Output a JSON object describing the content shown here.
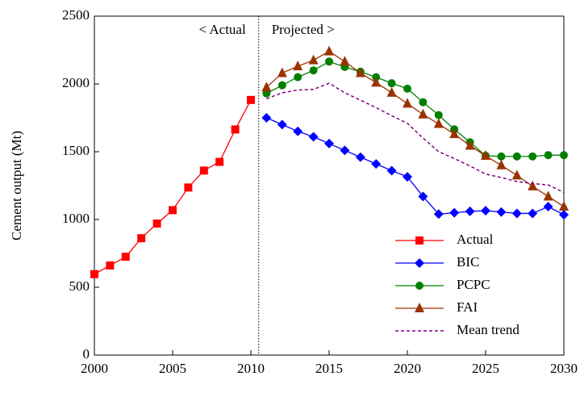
{
  "chart_data": {
    "type": "line",
    "y_label": "Cement output (Mt)",
    "annotations": [
      "< Actual",
      "Projected >"
    ],
    "divider": 2010.5,
    "x": [
      2000,
      2001,
      2002,
      2003,
      2004,
      2005,
      2006,
      2007,
      2008,
      2009,
      2010,
      2011,
      2012,
      2013,
      2014,
      2015,
      2016,
      2017,
      2018,
      2019,
      2020,
      2021,
      2022,
      2023,
      2024,
      2025,
      2026,
      2027,
      2028,
      2029,
      2030
    ],
    "series": [
      {
        "name": "Actual",
        "color": "#ff0000",
        "marker": "square",
        "dashed": false,
        "values": [
          597,
          661,
          725,
          862,
          970,
          1069,
          1236,
          1361,
          1425,
          1664,
          1882,
          null,
          null,
          null,
          null,
          null,
          null,
          null,
          null,
          null,
          null,
          null,
          null,
          null,
          null,
          null,
          null,
          null,
          null,
          null,
          null
        ]
      },
      {
        "name": "BIC",
        "color": "#0000ff",
        "marker": "diamond",
        "dashed": false,
        "values": [
          null,
          null,
          null,
          null,
          null,
          null,
          null,
          null,
          null,
          null,
          null,
          1750,
          1700,
          1650,
          1610,
          1560,
          1510,
          1460,
          1410,
          1360,
          1315,
          1170,
          1040,
          1050,
          1060,
          1065,
          1055,
          1045,
          1045,
          1095,
          1035
        ]
      },
      {
        "name": "PCPC",
        "color": "#008000",
        "marker": "circle",
        "dashed": false,
        "values": [
          null,
          null,
          null,
          null,
          null,
          null,
          null,
          null,
          null,
          null,
          null,
          1930,
          1990,
          2050,
          2100,
          2165,
          2125,
          2090,
          2050,
          2005,
          1965,
          1865,
          1770,
          1665,
          1570,
          1470,
          1465,
          1465,
          1465,
          1475,
          1475
        ]
      },
      {
        "name": "FAI",
        "color": "#993300",
        "marker": "triangle",
        "dashed": false,
        "values": [
          null,
          null,
          null,
          null,
          null,
          null,
          null,
          null,
          null,
          null,
          null,
          1975,
          2080,
          2130,
          2175,
          2240,
          2165,
          2080,
          2010,
          1935,
          1855,
          1775,
          1705,
          1630,
          1545,
          1470,
          1400,
          1325,
          1245,
          1170,
          1095
        ]
      },
      {
        "name": "Mean trend",
        "color": "#800080",
        "marker": "none",
        "dashed": true,
        "values": [
          null,
          null,
          null,
          null,
          null,
          null,
          null,
          null,
          null,
          null,
          null,
          1890,
          1935,
          1955,
          1960,
          2005,
          1935,
          1880,
          1825,
          1765,
          1710,
          1600,
          1500,
          1450,
          1395,
          1335,
          1310,
          1280,
          1265,
          1255,
          1200
        ]
      }
    ],
    "xlim": [
      2000,
      2030
    ],
    "xticks": [
      2000,
      2005,
      2010,
      2015,
      2020,
      2025,
      2030
    ],
    "ylim": [
      0,
      2500
    ],
    "yticks": [
      0,
      500,
      1000,
      1500,
      2000,
      2500
    ],
    "legend": "lower right"
  }
}
